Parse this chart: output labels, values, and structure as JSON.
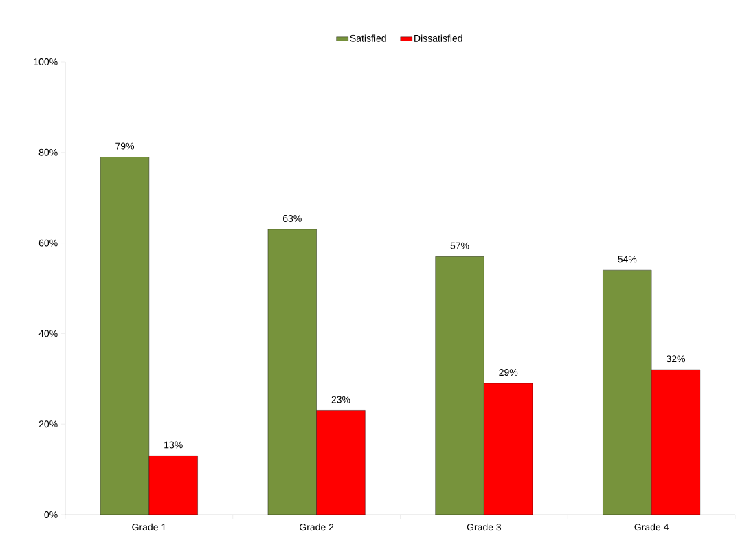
{
  "chart_data": {
    "type": "bar",
    "categories": [
      "Grade 1",
      "Grade 2",
      "Grade 3",
      "Grade 4"
    ],
    "series": [
      {
        "name": "Satisfied",
        "color": "#77933c",
        "values": [
          79,
          63,
          57,
          54
        ],
        "value_labels": [
          "79%",
          "63%",
          "57%",
          "54%"
        ]
      },
      {
        "name": "Dissatisfied",
        "color": "#ff0000",
        "values": [
          13,
          23,
          29,
          32
        ],
        "value_labels": [
          "13%",
          "23%",
          "29%",
          "32%"
        ]
      }
    ],
    "ylim": [
      0,
      100
    ],
    "yticks": [
      {
        "value": 0,
        "label": "0%"
      },
      {
        "value": 20,
        "label": "20%"
      },
      {
        "value": 40,
        "label": "40%"
      },
      {
        "value": 60,
        "label": "60%"
      },
      {
        "value": 80,
        "label": "80%"
      },
      {
        "value": 100,
        "label": "100%"
      }
    ],
    "legend": "top"
  }
}
